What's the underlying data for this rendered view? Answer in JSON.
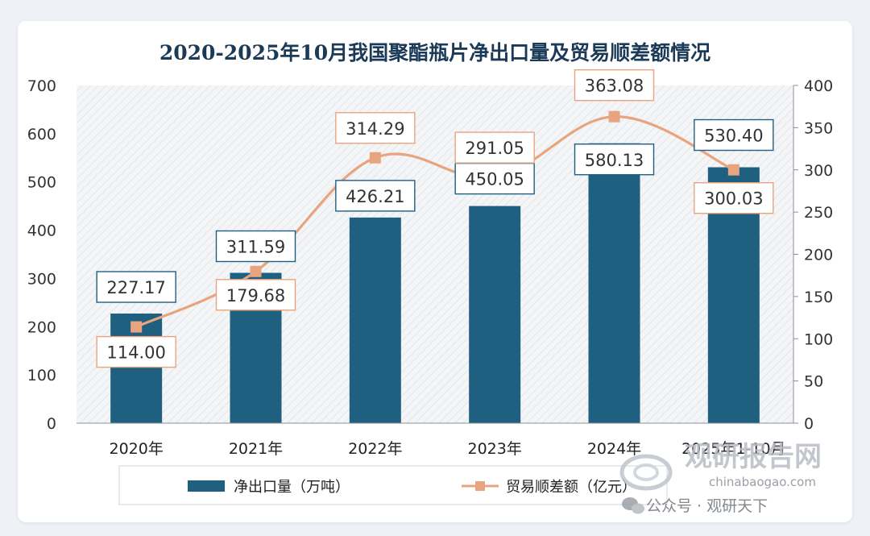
{
  "chart_data": {
    "type": "bar",
    "title": "2020-2025年10月我国聚酯瓶片净出口量及贸易顺差额情况",
    "categories": [
      "2020年",
      "2021年",
      "2022年",
      "2023年",
      "2024年",
      "2025年1-10月"
    ],
    "series": [
      {
        "name": "净出口量（万吨）",
        "type": "bar",
        "axis": "left",
        "color": "#1f5f80",
        "values": [
          227.17,
          311.59,
          426.21,
          450.05,
          580.13,
          530.4
        ],
        "value_labels": [
          "227.17",
          "311.59",
          "426.21",
          "450.05",
          "580.13",
          "530.40"
        ]
      },
      {
        "name": "贸易顺差额（亿元）",
        "type": "line",
        "axis": "right",
        "color": "#e8a47e",
        "values": [
          114.0,
          179.68,
          314.29,
          291.05,
          363.08,
          300.03
        ],
        "value_labels": [
          "114.00",
          "179.68",
          "314.29",
          "291.05",
          "363.08",
          "300.03"
        ]
      }
    ],
    "y_left": {
      "min": 0,
      "max": 700,
      "ticks": [
        "0",
        "100",
        "200",
        "300",
        "400",
        "500",
        "600",
        "700"
      ]
    },
    "y_right": {
      "min": 0,
      "max": 400,
      "ticks": [
        "0",
        "50",
        "100",
        "150",
        "200",
        "250",
        "300",
        "350",
        "400"
      ]
    },
    "grid": false,
    "legend_position": "bottom"
  },
  "watermark": {
    "logo_text": "观研报告网",
    "site": "chinabaogao.com",
    "account": "公众号 · 观研天下"
  }
}
